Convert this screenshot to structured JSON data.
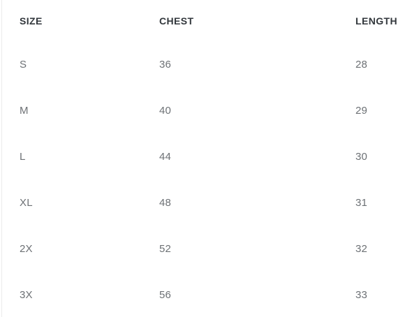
{
  "table": {
    "columns": [
      {
        "key": "size",
        "label": "SIZE"
      },
      {
        "key": "chest",
        "label": "CHEST"
      },
      {
        "key": "length",
        "label": "LENGTH"
      }
    ],
    "rows": [
      {
        "size": "S",
        "chest": "36",
        "length": "28"
      },
      {
        "size": "M",
        "chest": "40",
        "length": "29"
      },
      {
        "size": "L",
        "chest": "44",
        "length": "30"
      },
      {
        "size": "XL",
        "chest": "48",
        "length": "31"
      },
      {
        "size": "2X",
        "chest": "52",
        "length": "32"
      },
      {
        "size": "3X",
        "chest": "56",
        "length": "33"
      }
    ]
  },
  "colors": {
    "header_text": "#32373c",
    "body_text": "#6d7175",
    "background": "#ffffff",
    "left_border": "#ebebeb"
  }
}
